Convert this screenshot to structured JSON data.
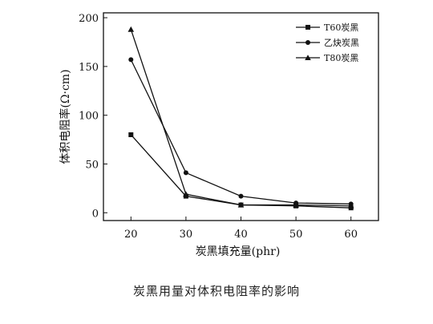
{
  "chart_data": {
    "type": "line",
    "title": "",
    "xlabel": "炭黑填充量(phr)",
    "ylabel": "体积电阻率(Ω·cm)",
    "x": [
      20,
      30,
      40,
      50,
      60
    ],
    "xlim": [
      15,
      65
    ],
    "ylim": [
      -8,
      205
    ],
    "xticks": [
      20,
      30,
      40,
      50,
      60
    ],
    "yticks": [
      0,
      50,
      100,
      150,
      200
    ],
    "grid": false,
    "legend": "top-right",
    "series": [
      {
        "name": "T60炭黑",
        "marker": "square",
        "values": [
          80,
          17,
          8,
          7,
          5
        ]
      },
      {
        "name": "乙炔炭黑",
        "marker": "circle",
        "values": [
          157,
          41,
          17,
          10,
          9
        ]
      },
      {
        "name": "T80炭黑",
        "marker": "triangle",
        "values": [
          188,
          19,
          8,
          8,
          7
        ]
      }
    ]
  },
  "caption": "炭黑用量对体积电阻率的影响"
}
